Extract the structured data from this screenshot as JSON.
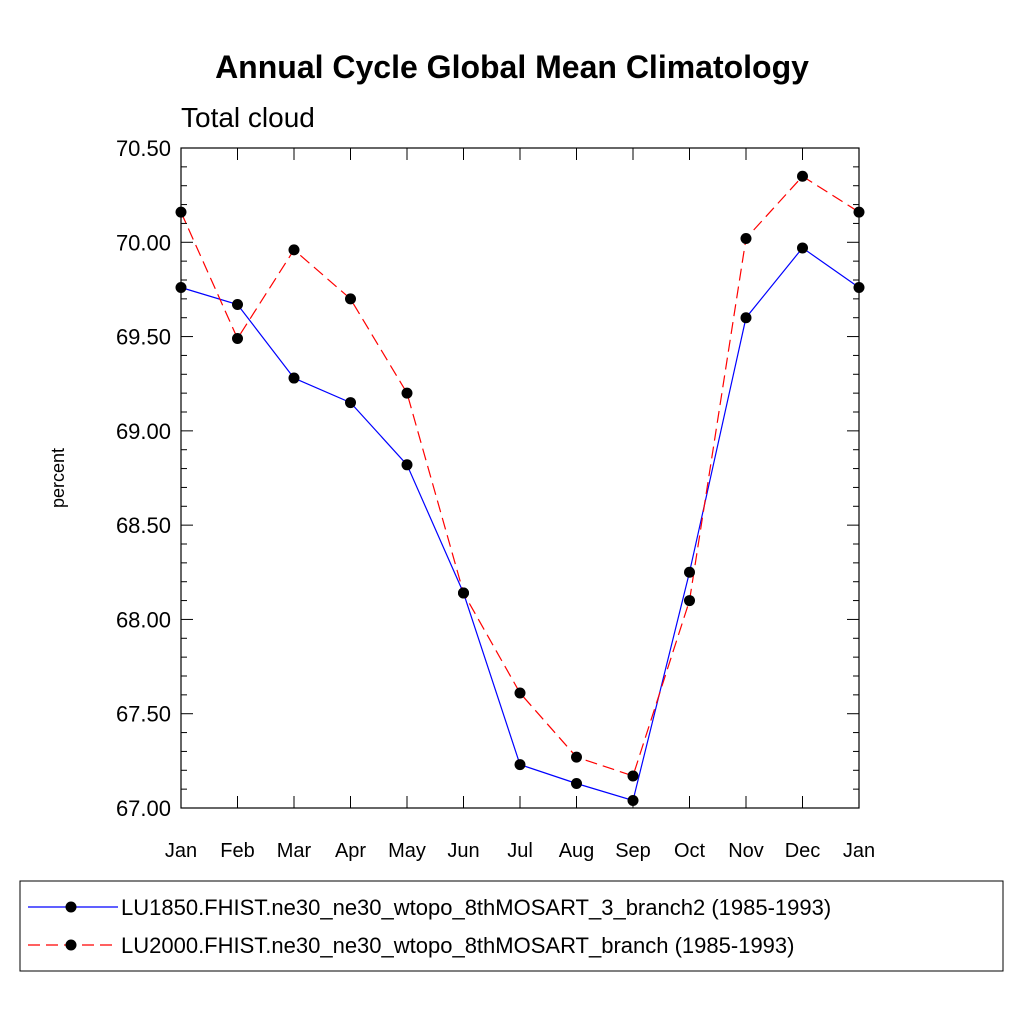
{
  "chart_data": {
    "type": "line",
    "title": "Annual Cycle Global Mean Climatology",
    "subtitle": "Total cloud",
    "xlabel": "",
    "ylabel": "percent",
    "ylim": [
      67.0,
      70.5
    ],
    "yticks": [
      "67.00",
      "67.50",
      "68.00",
      "68.50",
      "69.00",
      "69.50",
      "70.00",
      "70.50"
    ],
    "categories": [
      "Jan",
      "Feb",
      "Mar",
      "Apr",
      "May",
      "Jun",
      "Jul",
      "Aug",
      "Sep",
      "Oct",
      "Nov",
      "Dec",
      "Jan"
    ],
    "grid": false,
    "legend_placement": "bottom",
    "series": [
      {
        "name": "LU1850.FHIST.ne30_ne30_wtopo_8thMOSART_3_branch2 (1985-1993)",
        "color": "#0000ff",
        "line_style": "solid",
        "marker": "filled-circle",
        "values": [
          69.76,
          69.67,
          69.28,
          69.15,
          68.82,
          68.14,
          67.23,
          67.13,
          67.04,
          68.25,
          69.6,
          69.97,
          69.76
        ]
      },
      {
        "name": "LU2000.FHIST.ne30_ne30_wtopo_8thMOSART_branch (1985-1993)",
        "color": "#ff0000",
        "line_style": "dashed",
        "marker": "filled-circle",
        "values": [
          70.16,
          69.49,
          69.96,
          69.7,
          69.2,
          68.14,
          67.61,
          67.27,
          67.17,
          68.1,
          70.02,
          70.35,
          70.16
        ]
      }
    ]
  }
}
